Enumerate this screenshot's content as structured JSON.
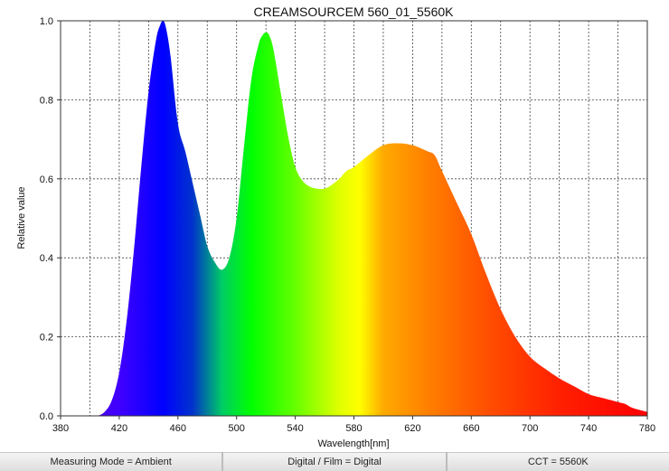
{
  "chart_data": {
    "type": "area",
    "title": "CREAMSOURCEM 560_01_5560K",
    "xlabel": "Wavelength[nm]",
    "ylabel": "Relative value",
    "xlim": [
      380,
      780
    ],
    "ylim": [
      0,
      1.0
    ],
    "x_ticks": [
      "380",
      "420",
      "460",
      "500",
      "540",
      "580",
      "620",
      "660",
      "700",
      "740",
      "780"
    ],
    "y_ticks": [
      "0.0",
      "0.2",
      "0.4",
      "0.6",
      "0.8",
      "1.0"
    ],
    "grid": true,
    "fill": "wavelength spectrum colors",
    "series": [
      {
        "x": [
          380,
          400,
          405,
          410,
          415,
          420,
          425,
          430,
          435,
          440,
          445,
          448,
          450,
          452,
          455,
          460,
          465,
          470,
          475,
          480,
          485,
          490,
          495,
          500,
          505,
          510,
          515,
          518,
          520,
          522,
          525,
          530,
          535,
          540,
          545,
          550,
          555,
          560,
          565,
          570,
          575,
          580,
          590,
          600,
          610,
          620,
          630,
          635,
          640,
          650,
          660,
          670,
          680,
          690,
          700,
          710,
          720,
          730,
          740,
          750,
          755,
          760,
          765,
          770,
          780
        ],
        "values": [
          0,
          0,
          0,
          0.01,
          0.04,
          0.11,
          0.24,
          0.42,
          0.63,
          0.82,
          0.95,
          0.99,
          1.0,
          0.98,
          0.91,
          0.74,
          0.67,
          0.59,
          0.51,
          0.43,
          0.39,
          0.37,
          0.4,
          0.5,
          0.68,
          0.85,
          0.94,
          0.965,
          0.97,
          0.965,
          0.93,
          0.82,
          0.71,
          0.63,
          0.595,
          0.58,
          0.575,
          0.575,
          0.585,
          0.6,
          0.62,
          0.63,
          0.66,
          0.685,
          0.69,
          0.685,
          0.67,
          0.66,
          0.62,
          0.54,
          0.46,
          0.36,
          0.27,
          0.2,
          0.15,
          0.12,
          0.095,
          0.075,
          0.055,
          0.045,
          0.04,
          0.035,
          0.03,
          0.02,
          0.01
        ]
      }
    ]
  },
  "status": {
    "measuring_mode": "Measuring Mode = Ambient",
    "film_mode": "Digital / Film = Digital",
    "cct": "CCT = 5560K"
  }
}
